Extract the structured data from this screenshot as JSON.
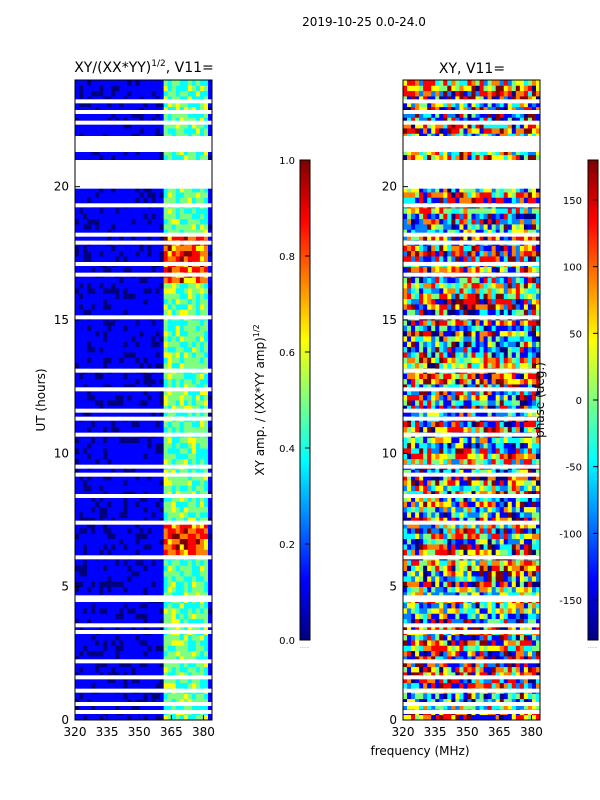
{
  "chart_data": [
    {
      "type": "heatmap",
      "suptitle": "2019-10-25 0.0-24.0",
      "title_main": "XY/(XX*YY)",
      "title_sup": "1/2",
      "title_suffix": ", V11=",
      "ylabel": "UT (hours)",
      "xlabel": "",
      "xlim": [
        320,
        384
      ],
      "ylim": [
        0,
        24
      ],
      "xticks": [
        320,
        335,
        350,
        365,
        380
      ],
      "yticks": [
        0,
        5,
        10,
        15,
        20
      ],
      "colorbar": {
        "label_main": "XY amp. / (XX*YY amp)",
        "label_sup": "1/2",
        "range": [
          0.0,
          1.0
        ],
        "ticks": [
          "0.0",
          "0.2",
          "0.4",
          "0.6",
          "0.8",
          "1.0"
        ]
      },
      "blank_rows_hours": [
        0.3,
        0.6,
        1.1,
        1.6,
        2.2,
        3.3,
        3.55,
        4.5,
        4.6,
        6.1,
        7.4,
        8.4,
        9.2,
        9.5,
        10.7,
        11.3,
        11.6,
        12.4,
        13.1,
        15.1,
        16.7,
        17.1,
        17.9,
        18.2,
        19.3,
        20.0,
        21.5,
        22.4,
        22.8,
        23.2
      ]
    },
    {
      "type": "heatmap",
      "title": "XY, V11=",
      "xlabel": "frequency (MHz)",
      "xlim": [
        320,
        384
      ],
      "ylim": [
        0,
        24
      ],
      "xticks": [
        320,
        335,
        350,
        365,
        380
      ],
      "yticks": [
        0,
        5,
        10,
        15,
        20
      ],
      "colorbar": {
        "label": "phase (deg.)",
        "range": [
          -180,
          180
        ],
        "ticks": [
          "-150",
          "-100",
          "-50",
          "0",
          "50",
          "100",
          "150"
        ]
      }
    }
  ],
  "colormap": [
    "#00007f",
    "#0000ff",
    "#007fff",
    "#00ffff",
    "#7fff7f",
    "#ffff00",
    "#ff7f00",
    "#ff0000",
    "#7f0000"
  ],
  "footnote_mark": "......"
}
